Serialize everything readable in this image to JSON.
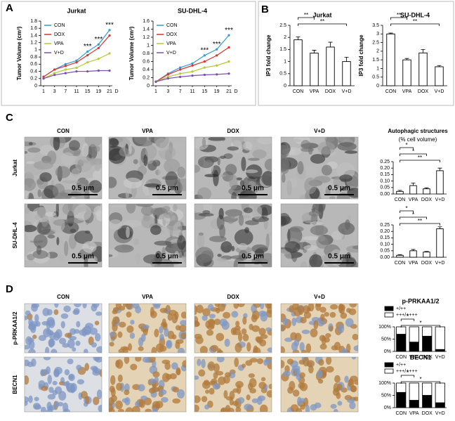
{
  "figure": {
    "panel_labels": [
      "A",
      "B",
      "C",
      "D"
    ],
    "tem": {
      "columns": [
        "CON",
        "VPA",
        "DOX",
        "V+D"
      ],
      "rows": [
        "Jurkat",
        "SU-DHL-4"
      ],
      "scale_bar": "0.5 μm"
    },
    "autophagy_title": [
      "Autophagic structures",
      "(% cell volume)"
    ],
    "ihc": {
      "columns": [
        "CON",
        "VPA",
        "DOX",
        "V+D"
      ],
      "rows": [
        "p-PRKAA1/2",
        "BECN1"
      ]
    }
  },
  "chart_data": [
    {
      "type": "line",
      "title": "Jurkat",
      "y_label": "Tumor Volume (cm³)",
      "x_label": "D",
      "categories": [
        "1",
        "3",
        "7",
        "11",
        "15",
        "19",
        "21"
      ],
      "series": [
        {
          "name": "CON",
          "color": "#2e9bd6",
          "values": [
            0.25,
            0.45,
            0.6,
            0.7,
            0.95,
            1.15,
            1.55
          ]
        },
        {
          "name": "DOX",
          "color": "#e0312f",
          "values": [
            0.25,
            0.45,
            0.55,
            0.65,
            0.85,
            1.05,
            1.4
          ]
        },
        {
          "name": "VPA",
          "color": "#b5c93a",
          "values": [
            0.2,
            0.35,
            0.45,
            0.5,
            0.65,
            0.75,
            0.9
          ]
        },
        {
          "name": "V+D",
          "color": "#7a4fb0",
          "values": [
            0.2,
            0.3,
            0.35,
            0.4,
            0.4,
            0.42,
            0.42
          ]
        }
      ],
      "ylim": [
        0,
        1.8
      ],
      "yticks": [
        0,
        0.2,
        0.4,
        0.6,
        0.8,
        1,
        1.2,
        1.4,
        1.6,
        1.8
      ],
      "annotations": [
        {
          "text": "***",
          "category": "15"
        },
        {
          "text": "***",
          "category": "19"
        },
        {
          "text": "***",
          "category": "21"
        }
      ]
    },
    {
      "type": "line",
      "title": "SU-DHL-4",
      "y_label": "Tumor Volume (cm³)",
      "x_label": "D",
      "categories": [
        "1",
        "3",
        "7",
        "11",
        "15",
        "19",
        "21"
      ],
      "series": [
        {
          "name": "CON",
          "color": "#2e9bd6",
          "values": [
            0.1,
            0.3,
            0.45,
            0.55,
            0.75,
            0.9,
            1.25
          ]
        },
        {
          "name": "DOX",
          "color": "#e0312f",
          "values": [
            0.1,
            0.28,
            0.4,
            0.5,
            0.6,
            0.75,
            0.95
          ]
        },
        {
          "name": "VPA",
          "color": "#b5c93a",
          "values": [
            0.1,
            0.22,
            0.3,
            0.35,
            0.45,
            0.5,
            0.6
          ]
        },
        {
          "name": "V+D",
          "color": "#7a4fb0",
          "values": [
            0.1,
            0.18,
            0.22,
            0.25,
            0.27,
            0.28,
            0.3
          ]
        }
      ],
      "ylim": [
        0,
        1.6
      ],
      "yticks": [
        0,
        0.2,
        0.4,
        0.6,
        0.8,
        1,
        1.2,
        1.4,
        1.6
      ],
      "annotations": [
        {
          "text": "***",
          "category": "15"
        },
        {
          "text": "***",
          "category": "19"
        },
        {
          "text": "***",
          "category": "21"
        }
      ]
    },
    {
      "type": "bar",
      "title": "Jurkat",
      "y_label": "IP3 fold change",
      "categories": [
        "CON",
        "VPA",
        "DOX",
        "V+D"
      ],
      "values": [
        1.9,
        1.35,
        1.6,
        1.0
      ],
      "errors": [
        0.12,
        0.12,
        0.2,
        0.18
      ],
      "ylim": [
        0,
        2.5
      ],
      "yticks": [
        0,
        0.5,
        1,
        1.5,
        2,
        2.5
      ],
      "brackets": [
        {
          "text": "**",
          "from": "CON",
          "to": "VPA"
        },
        {
          "text": "**",
          "from": "CON",
          "to": "V+D"
        }
      ]
    },
    {
      "type": "bar",
      "title": "SU-DHL-4",
      "y_label": "IP3 fold change",
      "categories": [
        "CON",
        "VPA",
        "DOX",
        "V+D"
      ],
      "values": [
        3.0,
        1.5,
        1.9,
        1.1
      ],
      "errors": [
        0.05,
        0.08,
        0.2,
        0.07
      ],
      "ylim": [
        0,
        3.5
      ],
      "yticks": [
        0,
        0.5,
        1,
        1.5,
        2,
        2.5,
        3,
        3.5
      ],
      "brackets": [
        {
          "text": "**",
          "from": "CON",
          "to": "VPA"
        },
        {
          "text": "**",
          "from": "CON",
          "to": "V+D"
        }
      ]
    },
    {
      "type": "bar",
      "categories": [
        "CON",
        "VPA",
        "DOX",
        "V+D"
      ],
      "values": [
        0.02,
        0.065,
        0.04,
        0.18
      ],
      "errors": [
        0.008,
        0.02,
        0.008,
        0.02
      ],
      "ylim": [
        0,
        0.25
      ],
      "yticks": [
        {
          "value": 0,
          "label": "0.00"
        },
        0.05,
        {
          "value": 0.1,
          "label": "0.10"
        },
        0.15,
        {
          "value": 0.2,
          "label": "0.20"
        },
        0.25
      ],
      "brackets": [
        {
          "text": "*",
          "from": "CON",
          "to": "VPA"
        },
        {
          "text": "*",
          "from": "CON",
          "to": "DOX"
        },
        {
          "text": "**",
          "from": "CON",
          "to": "V+D"
        }
      ]
    },
    {
      "type": "bar",
      "categories": [
        "CON",
        "VPA",
        "DOX",
        "V+D"
      ],
      "values": [
        0.015,
        0.05,
        0.04,
        0.22
      ],
      "errors": [
        0.005,
        0.01,
        0.005,
        0.015
      ],
      "ylim": [
        0,
        0.25
      ],
      "yticks": [
        {
          "value": 0,
          "label": "0.00"
        },
        0.05,
        {
          "value": 0.1,
          "label": "0.10"
        },
        0.15,
        {
          "value": 0.2,
          "label": "0.20"
        },
        0.25
      ],
      "brackets": [
        {
          "text": "*",
          "from": "CON",
          "to": "VPA"
        },
        {
          "text": "*",
          "from": "CON",
          "to": "DOX"
        },
        {
          "text": "**",
          "from": "CON",
          "to": "V+D"
        }
      ]
    },
    {
      "type": "stacked",
      "title": "p-PRKAA1/2",
      "categories": [
        "CON",
        "VPA",
        "DOX",
        "V+D"
      ],
      "series": [
        {
          "name": "+/++",
          "color": "#000000",
          "values": [
            70,
            38,
            62,
            8
          ]
        },
        {
          "name": "+++/++++",
          "color": "#ffffff",
          "values": [
            30,
            62,
            38,
            92
          ]
        }
      ],
      "ylim": [
        0,
        100
      ],
      "yticks": [
        {
          "value": 0,
          "label": "0%"
        },
        {
          "value": 50,
          "label": "50%"
        },
        {
          "value": 100,
          "label": "100%"
        }
      ],
      "brackets": [
        {
          "text": "*",
          "from": "CON",
          "to": "VPA"
        },
        {
          "text": "*",
          "from": "CON",
          "to": "V+D"
        }
      ]
    },
    {
      "type": "stacked",
      "title": "BECN1",
      "categories": [
        "CON",
        "VPA",
        "DOX",
        "V+D"
      ],
      "series": [
        {
          "name": "+/++",
          "color": "#000000",
          "values": [
            62,
            30,
            50,
            20
          ]
        },
        {
          "name": "+++/++++",
          "color": "#ffffff",
          "values": [
            38,
            70,
            50,
            80
          ]
        }
      ],
      "ylim": [
        0,
        100
      ],
      "yticks": [
        {
          "value": 0,
          "label": "0%"
        },
        {
          "value": 50,
          "label": "50%"
        },
        {
          "value": 100,
          "label": "100%"
        }
      ],
      "brackets": [
        {
          "text": "*",
          "from": "CON",
          "to": "VPA"
        },
        {
          "text": "*",
          "from": "CON",
          "to": "V+D"
        }
      ]
    }
  ]
}
